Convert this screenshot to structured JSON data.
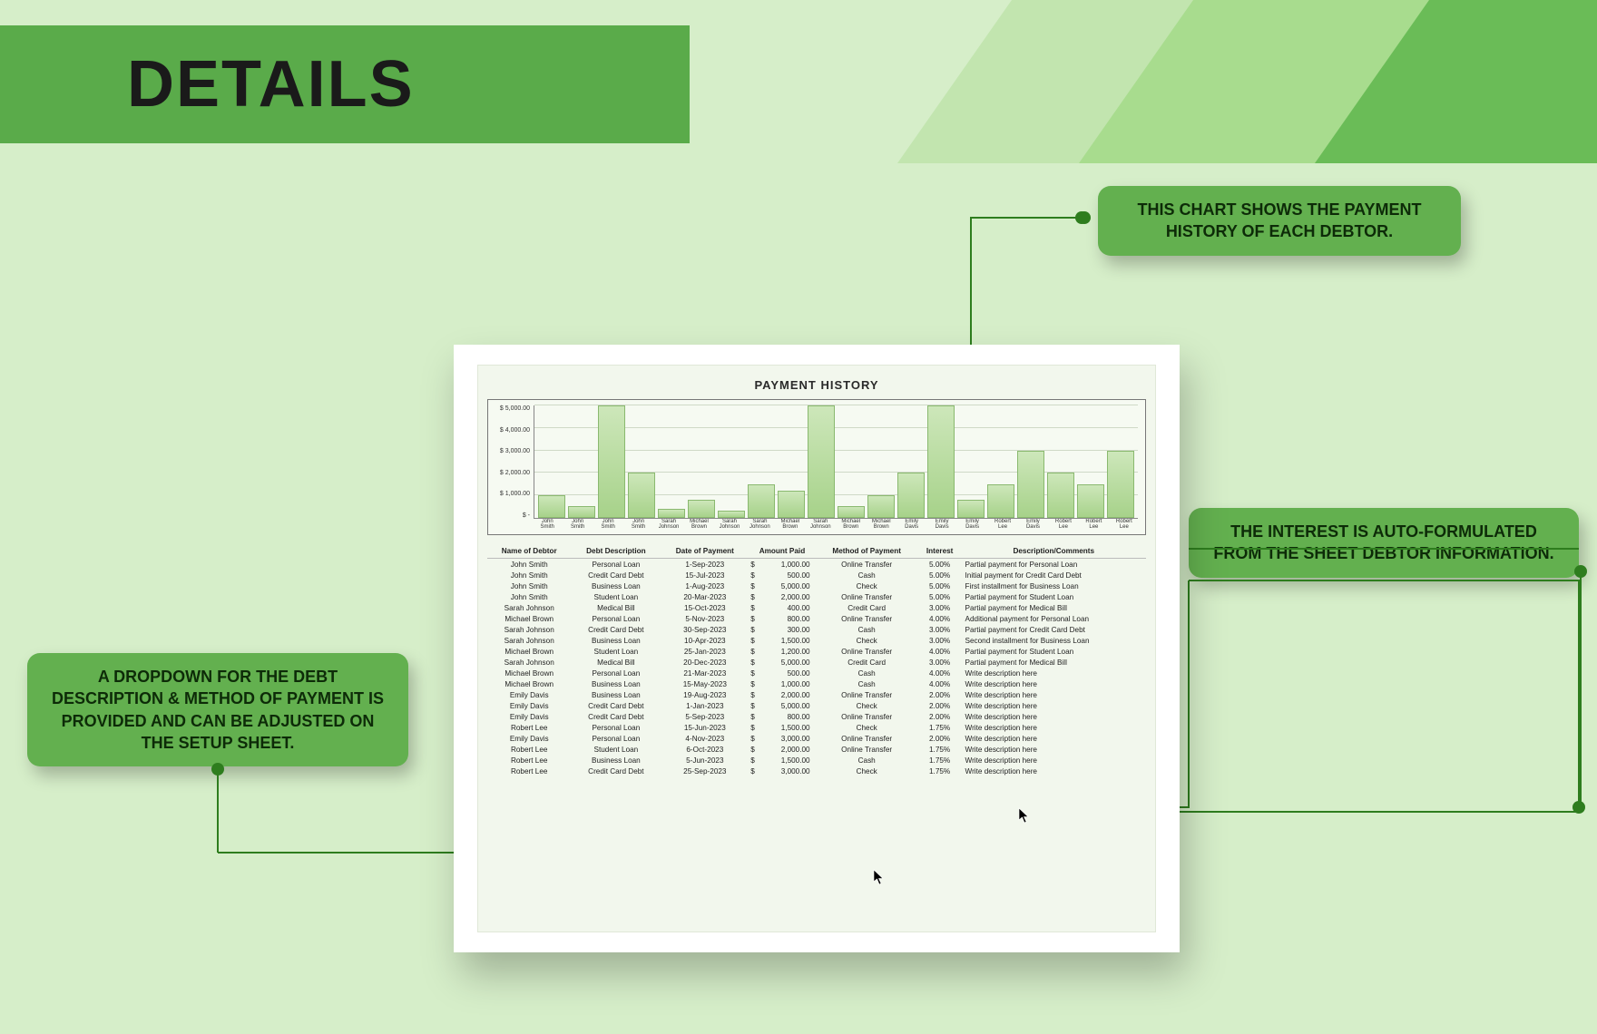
{
  "header": {
    "title": "DETAILS"
  },
  "callouts": {
    "c1": "THIS CHART SHOWS THE PAYMENT HISTORY OF EACH DEBTOR.",
    "c2": "THE INTEREST IS AUTO-FORMULATED FROM THE SHEET DEBTOR INFORMATION.",
    "c3": "A DROPDOWN FOR THE DEBT DESCRIPTION & METHOD OF PAYMENT IS PROVIDED AND CAN BE ADJUSTED ON THE SETUP SHEET."
  },
  "chart": {
    "title": "PAYMENT HISTORY",
    "type": "bar",
    "y_ticks": [
      "$ 5,000.00",
      "$ 4,000.00",
      "$ 3,000.00",
      "$ 2,000.00",
      "$ 1,000.00",
      "$ -"
    ],
    "ylim": [
      0,
      5000
    ],
    "grid_color": "#cfd9c7",
    "bar_gradient": [
      "#cde7ba",
      "#a7d28a"
    ],
    "bar_border": "#8ab96f",
    "background_color": "#f6faf2",
    "categories": [
      "John Smith",
      "John Smith",
      "John Smith",
      "John Smith",
      "Sarah Johnson",
      "Michael Brown",
      "Sarah Johnson",
      "Sarah Johnson",
      "Michael Brown",
      "Sarah Johnson",
      "Michael Brown",
      "Michael Brown",
      "Emily Davis",
      "Emily Davis",
      "Emily Davis",
      "Robert Lee",
      "Emily Davis",
      "Robert Lee",
      "Robert Lee",
      "Robert Lee"
    ],
    "values": [
      1000,
      500,
      5000,
      2000,
      400,
      800,
      300,
      1500,
      1200,
      5000,
      500,
      1000,
      2000,
      5000,
      800,
      1500,
      3000,
      2000,
      1500,
      3000
    ]
  },
  "table": {
    "columns": [
      "Name of Debtor",
      "Debt Description",
      "Date of Payment",
      "Amount Paid",
      "Method of Payment",
      "Interest",
      "Description/Comments"
    ],
    "rows": [
      [
        "John Smith",
        "Personal Loan",
        "1-Sep-2023",
        "1,000.00",
        "Online Transfer",
        "5.00%",
        "Partial payment for Personal Loan"
      ],
      [
        "John Smith",
        "Credit Card Debt",
        "15-Jul-2023",
        "500.00",
        "Cash",
        "5.00%",
        "Initial payment for Credit Card Debt"
      ],
      [
        "John Smith",
        "Business Loan",
        "1-Aug-2023",
        "5,000.00",
        "Check",
        "5.00%",
        "First installment for Business Loan"
      ],
      [
        "John Smith",
        "Student Loan",
        "20-Mar-2023",
        "2,000.00",
        "Online Transfer",
        "5.00%",
        "Partial payment for Student Loan"
      ],
      [
        "Sarah Johnson",
        "Medical Bill",
        "15-Oct-2023",
        "400.00",
        "Credit Card",
        "3.00%",
        "Partial payment for Medical Bill"
      ],
      [
        "Michael Brown",
        "Personal Loan",
        "5-Nov-2023",
        "800.00",
        "Online Transfer",
        "4.00%",
        "Additional payment for Personal Loan"
      ],
      [
        "Sarah Johnson",
        "Credit Card Debt",
        "30-Sep-2023",
        "300.00",
        "Cash",
        "3.00%",
        "Partial payment for Credit Card Debt"
      ],
      [
        "Sarah Johnson",
        "Business Loan",
        "10-Apr-2023",
        "1,500.00",
        "Check",
        "3.00%",
        "Second installment for Business Loan"
      ],
      [
        "Michael Brown",
        "Student Loan",
        "25-Jan-2023",
        "1,200.00",
        "Online Transfer",
        "4.00%",
        "Partial payment for Student Loan"
      ],
      [
        "Sarah Johnson",
        "Medical Bill",
        "20-Dec-2023",
        "5,000.00",
        "Credit Card",
        "3.00%",
        "Partial payment for Medical Bill"
      ],
      [
        "Michael Brown",
        "Personal Loan",
        "21-Mar-2023",
        "500.00",
        "Cash",
        "4.00%",
        "Write description here"
      ],
      [
        "Michael Brown",
        "Business Loan",
        "15-May-2023",
        "1,000.00",
        "Cash",
        "4.00%",
        "Write description here"
      ],
      [
        "Emily Davis",
        "Business Loan",
        "19-Aug-2023",
        "2,000.00",
        "Online Transfer",
        "2.00%",
        "Write description here"
      ],
      [
        "Emily Davis",
        "Credit Card Debt",
        "1-Jan-2023",
        "5,000.00",
        "Check",
        "2.00%",
        "Write description here"
      ],
      [
        "Emily Davis",
        "Credit Card Debt",
        "5-Sep-2023",
        "800.00",
        "Online Transfer",
        "2.00%",
        "Write description here"
      ],
      [
        "Robert Lee",
        "Personal Loan",
        "15-Jun-2023",
        "1,500.00",
        "Check",
        "1.75%",
        "Write description here"
      ],
      [
        "Emily Davis",
        "Personal Loan",
        "4-Nov-2023",
        "3,000.00",
        "Online Transfer",
        "2.00%",
        "Write description here"
      ],
      [
        "Robert Lee",
        "Student Loan",
        "6-Oct-2023",
        "2,000.00",
        "Online Transfer",
        "1.75%",
        "Write description here"
      ],
      [
        "Robert Lee",
        "Business Loan",
        "5-Jun-2023",
        "1,500.00",
        "Cash",
        "1.75%",
        "Write description here"
      ],
      [
        "Robert Lee",
        "Credit Card Debt",
        "25-Sep-2023",
        "3,000.00",
        "Check",
        "1.75%",
        "Write description here"
      ]
    ]
  },
  "palette": {
    "page_bg": "#d6eec9",
    "banner_bg": "#5aab4a",
    "stripe_a": "#c2e5af",
    "stripe_b": "#a8dc8e",
    "stripe_c": "#6abc57",
    "callout_bg": "#63b04f",
    "connector": "#2e7d1e",
    "sheet_inner_bg": "#f2f7ed"
  }
}
